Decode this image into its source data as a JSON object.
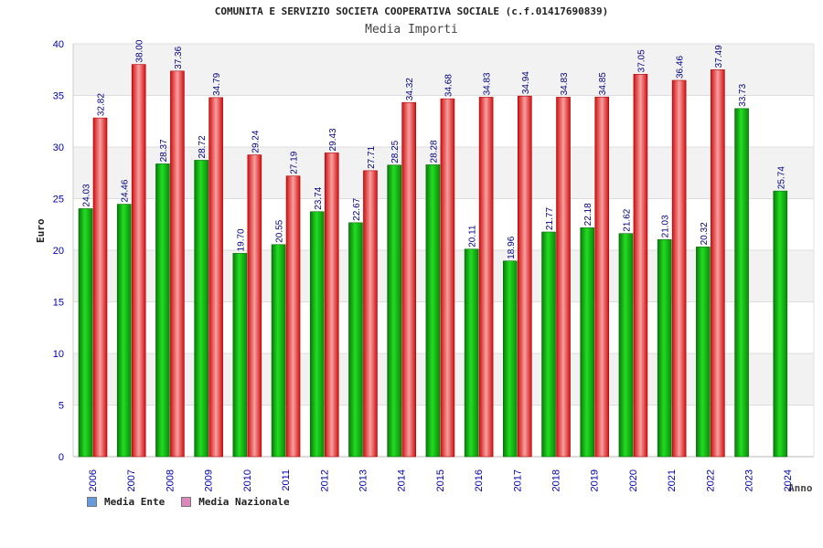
{
  "chart_data": {
    "type": "bar",
    "title": "COMUNITA E SERVIZIO SOCIETA COOPERATIVA SOCIALE (c.f.01417690839)",
    "subtitle": "Media Importi",
    "ylabel": "Euro",
    "xlabel": "Anno",
    "ylim": [
      0,
      40
    ],
    "yticks": [
      "0",
      "5",
      "10",
      "15",
      "20",
      "25",
      "30",
      "35",
      "40"
    ],
    "categories": [
      "2006",
      "2007",
      "2008",
      "2009",
      "2010",
      "2011",
      "2012",
      "2013",
      "2014",
      "2015",
      "2016",
      "2017",
      "2018",
      "2019",
      "2020",
      "2021",
      "2022",
      "2023",
      "2024"
    ],
    "series": [
      {
        "name": "Media Ente",
        "values": [
          24.03,
          24.46,
          28.37,
          28.72,
          19.7,
          20.55,
          23.74,
          22.67,
          28.25,
          28.28,
          20.11,
          18.96,
          21.77,
          22.18,
          21.62,
          21.03,
          20.32,
          33.73,
          25.74
        ],
        "labels": [
          "24.03",
          "24.46",
          "28.37",
          "28.72",
          "19.70",
          "20.55",
          "23.74",
          "22.67",
          "28.25",
          "28.28",
          "20.11",
          "18.96",
          "21.77",
          "22.18",
          "21.62",
          "21.03",
          "20.32",
          "33.73",
          "25.74"
        ]
      },
      {
        "name": "Media Nazionale",
        "values": [
          32.82,
          38.0,
          37.36,
          34.79,
          29.24,
          27.19,
          29.43,
          27.71,
          34.32,
          34.68,
          34.83,
          34.94,
          34.83,
          34.85,
          37.05,
          36.46,
          37.49,
          null,
          null
        ],
        "labels": [
          "32.82",
          "38.00",
          "37.36",
          "34.79",
          "29.24",
          "27.19",
          "29.43",
          "27.71",
          "34.32",
          "34.68",
          "34.83",
          "34.94",
          "34.83",
          "34.85",
          "37.05",
          "36.46",
          "37.49",
          null,
          null
        ]
      }
    ],
    "legend": [
      {
        "label": "Media Ente",
        "color": "#6699dd"
      },
      {
        "label": "Media Nazionale",
        "color": "#dd88bb"
      }
    ],
    "legend_position": "bottom-left",
    "colors": {
      "ente": "#11aa11",
      "nazionale": "#ee2222",
      "band": "#f2f2f2"
    }
  }
}
